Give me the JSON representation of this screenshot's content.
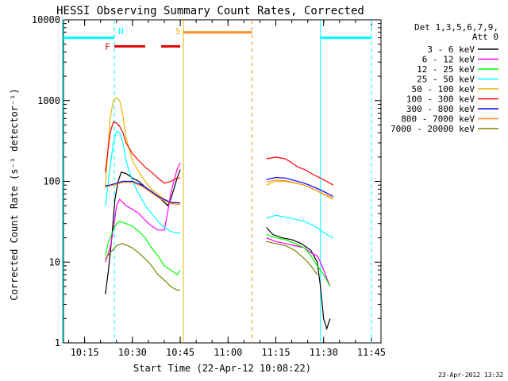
{
  "chart_data": {
    "type": "line",
    "title": "HESSI Observing Summary Count Rates, Corrected",
    "xlabel": "Start Time (22-Apr-12 10:08:22)",
    "ylabel": "Corrected Count Rate (s⁻¹ detector⁻¹)",
    "y_scale": "log",
    "ylim": [
      1,
      10000
    ],
    "xlim": [
      "10:08:22",
      "11:48:00"
    ],
    "y_ticks": [
      {
        "value": 1,
        "label": "1"
      },
      {
        "value": 10,
        "label": "10"
      },
      {
        "value": 100,
        "label": "100"
      },
      {
        "value": 1000,
        "label": "1000"
      },
      {
        "value": 10000,
        "label": "10000"
      }
    ],
    "x_ticks": [
      {
        "value": "10:15",
        "label": "10:15"
      },
      {
        "value": "10:30",
        "label": "10:30"
      },
      {
        "value": "10:45",
        "label": "10:45"
      },
      {
        "value": "11:00",
        "label": "11:00"
      },
      {
        "value": "11:15",
        "label": "11:15"
      },
      {
        "value": "11:30",
        "label": "11:30"
      },
      {
        "value": "11:45",
        "label": "11:45"
      }
    ],
    "legend": {
      "placement": "right",
      "header": [
        "Det 1,3,5,6,7,9,",
        "Att 0"
      ]
    },
    "series": [
      {
        "name": "3 - 6 keV",
        "color": "#000000",
        "segments": [
          [
            [
              "10:21:30",
              4
            ],
            [
              "10:22:30",
              8
            ],
            [
              "10:23:30",
              20
            ],
            [
              "10:24:30",
              60
            ],
            [
              "10:25:30",
              100
            ],
            [
              "10:26:30",
              130
            ],
            [
              "10:28:00",
              125
            ],
            [
              "10:30:00",
              110
            ],
            [
              "10:32:00",
              100
            ],
            [
              "10:34:00",
              85
            ],
            [
              "10:36:00",
              75
            ],
            [
              "10:38:00",
              65
            ],
            [
              "10:40:00",
              55
            ],
            [
              "10:41:00",
              50
            ],
            [
              "10:42:00",
              60
            ],
            [
              "10:43:00",
              80
            ],
            [
              "10:44:00",
              110
            ],
            [
              "10:45:00",
              140
            ]
          ],
          [
            [
              "11:12:00",
              27
            ],
            [
              "11:14:00",
              22
            ],
            [
              "11:17:00",
              20
            ],
            [
              "11:20:00",
              19
            ],
            [
              "11:23:00",
              17
            ],
            [
              "11:26:00",
              14
            ],
            [
              "11:28:00",
              10
            ],
            [
              "11:29:00",
              5
            ],
            [
              "11:30:00",
              2
            ],
            [
              "11:31:00",
              1.5
            ],
            [
              "11:32:00",
              2
            ]
          ]
        ]
      },
      {
        "name": "6 - 12 keV",
        "color": "#ff00ff",
        "segments": [
          [
            [
              "10:21:30",
              10
            ],
            [
              "10:23:00",
              15
            ],
            [
              "10:24:00",
              25
            ],
            [
              "10:25:00",
              50
            ],
            [
              "10:26:00",
              60
            ],
            [
              "10:27:00",
              55
            ],
            [
              "10:28:00",
              50
            ],
            [
              "10:30:00",
              45
            ],
            [
              "10:32:00",
              40
            ],
            [
              "10:34:00",
              33
            ],
            [
              "10:36:00",
              28
            ],
            [
              "10:38:00",
              25
            ],
            [
              "10:40:00",
              25
            ],
            [
              "10:41:00",
              40
            ],
            [
              "10:42:00",
              70
            ],
            [
              "10:43:00",
              100
            ],
            [
              "10:44:00",
              140
            ],
            [
              "10:45:00",
              170
            ]
          ],
          [
            [
              "11:12:00",
              20
            ],
            [
              "11:15:00",
              18
            ],
            [
              "11:18:00",
              17
            ],
            [
              "11:21:00",
              16
            ],
            [
              "11:24:00",
              15
            ],
            [
              "11:26:00",
              13
            ],
            [
              "11:28:00",
              12
            ],
            [
              "11:29:00",
              10
            ],
            [
              "11:30:00",
              8
            ],
            [
              "11:32:00",
              5
            ]
          ]
        ]
      },
      {
        "name": "12 - 25 keV",
        "color": "#00ff00",
        "segments": [
          [
            [
              "10:21:30",
              12
            ],
            [
              "10:22:30",
              18
            ],
            [
              "10:24:00",
              25
            ],
            [
              "10:25:00",
              30
            ],
            [
              "10:26:00",
              32
            ],
            [
              "10:28:00",
              30
            ],
            [
              "10:30:00",
              28
            ],
            [
              "10:32:00",
              24
            ],
            [
              "10:34:00",
              20
            ],
            [
              "10:36:00",
              15
            ],
            [
              "10:38:00",
              12
            ],
            [
              "10:40:00",
              9
            ],
            [
              "10:42:00",
              8
            ],
            [
              "10:44:00",
              7
            ],
            [
              "10:45:00",
              8
            ]
          ],
          [
            [
              "11:12:00",
              22
            ],
            [
              "11:15:00",
              20
            ],
            [
              "11:18:00",
              19
            ],
            [
              "11:21:00",
              17
            ],
            [
              "11:24:00",
              15
            ],
            [
              "11:26:00",
              12
            ],
            [
              "11:28:00",
              9
            ],
            [
              "11:30:00",
              7
            ],
            [
              "11:32:00",
              5
            ]
          ]
        ]
      },
      {
        "name": "25 - 50 keV",
        "color": "#00ffff",
        "segments": [
          [
            [
              "10:21:30",
              50
            ],
            [
              "10:23:00",
              150
            ],
            [
              "10:24:00",
              300
            ],
            [
              "10:25:00",
              420
            ],
            [
              "10:26:00",
              400
            ],
            [
              "10:27:00",
              300
            ],
            [
              "10:28:00",
              180
            ],
            [
              "10:30:00",
              100
            ],
            [
              "10:32:00",
              70
            ],
            [
              "10:34:00",
              50
            ],
            [
              "10:36:00",
              40
            ],
            [
              "10:38:00",
              32
            ],
            [
              "10:40:00",
              27
            ],
            [
              "10:42:00",
              24
            ],
            [
              "10:44:00",
              23
            ],
            [
              "10:45:00",
              23
            ]
          ],
          [
            [
              "11:12:00",
              35
            ],
            [
              "11:15:00",
              38
            ],
            [
              "11:18:00",
              36
            ],
            [
              "11:21:00",
              34
            ],
            [
              "11:24:00",
              32
            ],
            [
              "11:27:00",
              28
            ],
            [
              "11:29:00",
              25
            ],
            [
              "11:31:00",
              22
            ],
            [
              "11:33:00",
              20
            ]
          ]
        ]
      },
      {
        "name": "50 - 100 keV",
        "color": "#e6b800",
        "segments": [
          [
            [
              "10:21:30",
              85
            ],
            [
              "10:23:00",
              600
            ],
            [
              "10:24:00",
              1000
            ],
            [
              "10:25:00",
              1080
            ],
            [
              "10:26:00",
              1000
            ],
            [
              "10:27:00",
              650
            ],
            [
              "10:28:00",
              350
            ],
            [
              "10:30:00",
              180
            ],
            [
              "10:32:00",
              130
            ],
            [
              "10:34:00",
              100
            ],
            [
              "10:36:00",
              80
            ],
            [
              "10:38:00",
              70
            ],
            [
              "10:40:00",
              60
            ],
            [
              "10:42:00",
              55
            ],
            [
              "10:44:00",
              52
            ],
            [
              "10:45:00",
              52
            ]
          ],
          [
            [
              "11:12:00",
              90
            ],
            [
              "11:15:00",
              100
            ],
            [
              "11:18:00",
              100
            ],
            [
              "11:21:00",
              95
            ],
            [
              "11:24:00",
              90
            ],
            [
              "11:27:00",
              80
            ],
            [
              "11:29:00",
              72
            ],
            [
              "11:31:00",
              66
            ],
            [
              "11:33:00",
              60
            ]
          ]
        ]
      },
      {
        "name": "100 - 300 keV",
        "color": "#ff0000",
        "segments": [
          [
            [
              "10:21:30",
              130
            ],
            [
              "10:23:00",
              400
            ],
            [
              "10:24:00",
              540
            ],
            [
              "10:25:00",
              530
            ],
            [
              "10:26:00",
              480
            ],
            [
              "10:27:00",
              400
            ],
            [
              "10:28:00",
              300
            ],
            [
              "10:30:00",
              220
            ],
            [
              "10:32:00",
              180
            ],
            [
              "10:34:00",
              150
            ],
            [
              "10:36:00",
              130
            ],
            [
              "10:38:00",
              110
            ],
            [
              "10:40:00",
              95
            ],
            [
              "10:42:00",
              100
            ],
            [
              "10:44:00",
              110
            ],
            [
              "10:45:00",
              110
            ]
          ],
          [
            [
              "11:12:00",
              190
            ],
            [
              "11:15:00",
              200
            ],
            [
              "11:18:00",
              190
            ],
            [
              "11:20:00",
              170
            ],
            [
              "11:22:00",
              150
            ],
            [
              "11:24:00",
              140
            ],
            [
              "11:27:00",
              120
            ],
            [
              "11:29:00",
              110
            ],
            [
              "11:31:00",
              100
            ],
            [
              "11:33:00",
              90
            ]
          ]
        ]
      },
      {
        "name": "300 - 800 keV",
        "color": "#0000ff",
        "segments": [
          [
            [
              "10:21:30",
              88
            ],
            [
              "10:23:00",
              90
            ],
            [
              "10:25:00",
              95
            ],
            [
              "10:27:00",
              100
            ],
            [
              "10:30:00",
              100
            ],
            [
              "10:33:00",
              90
            ],
            [
              "10:36:00",
              75
            ],
            [
              "10:39:00",
              62
            ],
            [
              "10:42:00",
              55
            ],
            [
              "10:45:00",
              54
            ]
          ],
          [
            [
              "11:12:00",
              105
            ],
            [
              "11:15:00",
              112
            ],
            [
              "11:18:00",
              110
            ],
            [
              "11:21:00",
              102
            ],
            [
              "11:24:00",
              95
            ],
            [
              "11:27:00",
              85
            ],
            [
              "11:30:00",
              75
            ],
            [
              "11:33:00",
              65
            ]
          ]
        ]
      },
      {
        "name": "800 - 7000 keV",
        "color": "#ff8c1a",
        "segments": [
          [
            [
              "10:21:30",
              85
            ],
            [
              "10:23:00",
              88
            ],
            [
              "10:25:00",
              92
            ],
            [
              "10:27:00",
              97
            ],
            [
              "10:30:00",
              97
            ],
            [
              "10:33:00",
              87
            ],
            [
              "10:36:00",
              72
            ],
            [
              "10:39:00",
              60
            ],
            [
              "10:42:00",
              53
            ],
            [
              "10:45:00",
              52
            ]
          ],
          [
            [
              "11:12:00",
              98
            ],
            [
              "11:15:00",
              104
            ],
            [
              "11:18:00",
              102
            ],
            [
              "11:21:00",
              96
            ],
            [
              "11:24:00",
              90
            ],
            [
              "11:27:00",
              80
            ],
            [
              "11:30:00",
              70
            ],
            [
              "11:33:00",
              62
            ]
          ]
        ]
      },
      {
        "name": "7000 - 20000 keV",
        "color": "#808000",
        "segments": [
          [
            [
              "10:21:30",
              11
            ],
            [
              "10:23:00",
              13
            ],
            [
              "10:25:00",
              16
            ],
            [
              "10:27:00",
              17
            ],
            [
              "10:30:00",
              15
            ],
            [
              "10:32:00",
              13
            ],
            [
              "10:34:00",
              11
            ],
            [
              "10:36:00",
              9
            ],
            [
              "10:38:00",
              7
            ],
            [
              "10:40:00",
              6
            ],
            [
              "10:42:00",
              5
            ],
            [
              "10:44:00",
              4.5
            ],
            [
              "10:45:00",
              4.5
            ]
          ],
          [
            [
              "11:12:00",
              18
            ],
            [
              "11:15:00",
              17
            ],
            [
              "11:18:00",
              16
            ],
            [
              "11:21:00",
              14
            ],
            [
              "11:24:00",
              11
            ],
            [
              "11:26:00",
              9
            ],
            [
              "11:28:00",
              7
            ]
          ]
        ]
      }
    ],
    "annotations": {
      "vertical_markers": [
        {
          "time": "10:08:00",
          "color": "#00ffff",
          "style": "solid"
        },
        {
          "time": "10:24:20",
          "color": "#00ffff",
          "style": "dashed",
          "label": "N"
        },
        {
          "time": "10:46:00",
          "color": "#e6b800",
          "style": "solid",
          "label": "S"
        },
        {
          "time": "11:07:30",
          "color": "#ff8c1a",
          "style": "dashed"
        },
        {
          "time": "11:29:00",
          "color": "#00ffff",
          "style": "solid"
        },
        {
          "time": "11:45:00",
          "color": "#00ffff",
          "style": "dashed"
        }
      ],
      "flag_bars": [
        {
          "label": "",
          "color": "#00ffff",
          "y": 6000,
          "start": "10:08:22",
          "end": "10:24:20"
        },
        {
          "label": "",
          "color": "#00ffff",
          "y": 6000,
          "start": "11:29:00",
          "end": "11:45:00"
        },
        {
          "label": "F",
          "color": "#e00000",
          "y": 4700,
          "start": "10:24:20",
          "end": "10:34:00"
        },
        {
          "label": "",
          "color": "#e00000",
          "y": 4700,
          "start": "10:39:00",
          "end": "10:45:00"
        },
        {
          "label": "",
          "color": "#ff8c1a",
          "y": 7000,
          "start": "10:46:00",
          "end": "11:07:30"
        }
      ]
    }
  },
  "footer": {
    "timestamp": "23-Apr-2012 13:32"
  }
}
